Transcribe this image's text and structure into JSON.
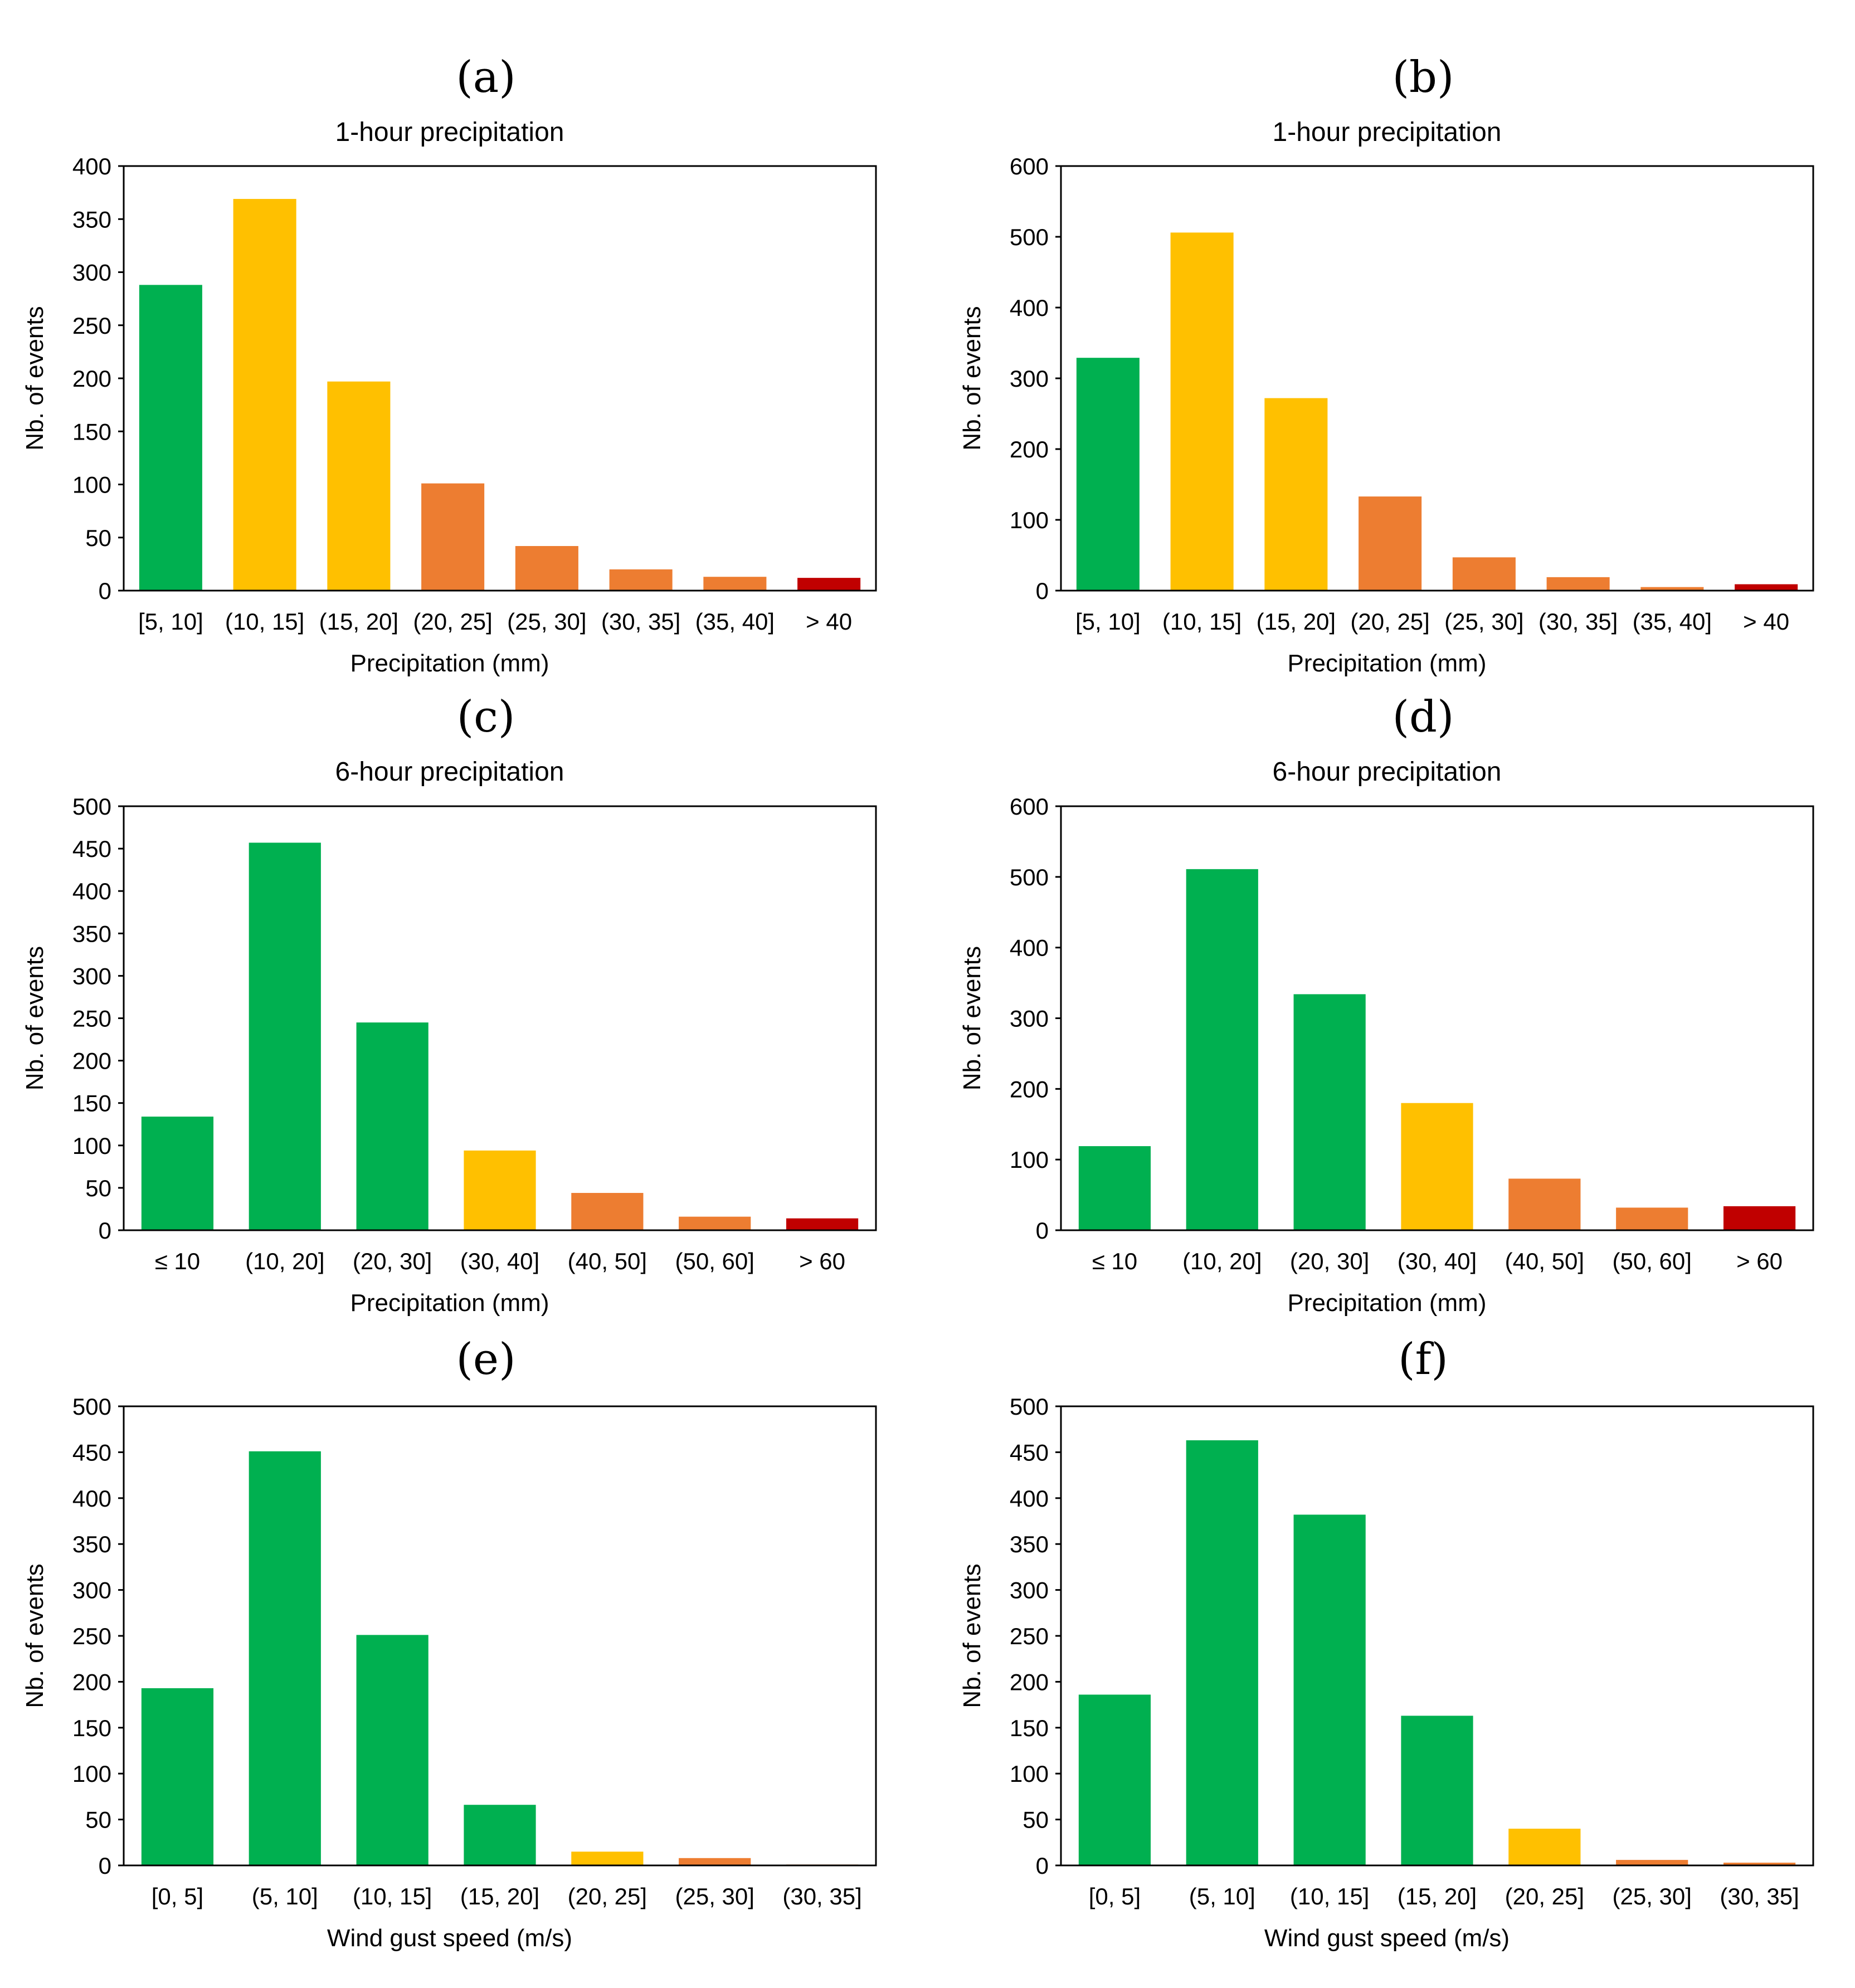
{
  "colors": {
    "green": "#00b050",
    "yellow": "#ffc000",
    "orange": "#ed7d31",
    "red": "#c00000"
  },
  "chart_data": [
    {
      "type": "bar",
      "panel": "(a)",
      "title": "1-hour precipitation",
      "xlabel": "Precipitation (mm)",
      "ylabel": "Nb. of events",
      "ylim": [
        0,
        400
      ],
      "yticks": [
        0,
        50,
        100,
        150,
        200,
        250,
        300,
        350,
        400
      ],
      "categories": [
        "[5, 10]",
        "(10, 15]",
        "(15, 20]",
        "(20, 25]",
        "(25, 30]",
        "(30, 35]",
        "(35, 40]",
        "> 40"
      ],
      "values": [
        288,
        369,
        197,
        101,
        42,
        20,
        13,
        12
      ],
      "bar_colors": [
        "green",
        "yellow",
        "yellow",
        "orange",
        "orange",
        "orange",
        "orange",
        "red"
      ]
    },
    {
      "type": "bar",
      "panel": "(b)",
      "title": "1-hour precipitation",
      "xlabel": "Precipitation (mm)",
      "ylabel": "Nb. of events",
      "ylim": [
        0,
        600
      ],
      "yticks": [
        0,
        100,
        200,
        300,
        400,
        500,
        600
      ],
      "categories": [
        "[5, 10]",
        "(10, 15]",
        "(15, 20]",
        "(20, 25]",
        "(25, 30]",
        "(30, 35]",
        "(35, 40]",
        "> 40"
      ],
      "values": [
        329,
        506,
        272,
        133,
        47,
        19,
        5,
        9
      ],
      "bar_colors": [
        "green",
        "yellow",
        "yellow",
        "orange",
        "orange",
        "orange",
        "orange",
        "red"
      ]
    },
    {
      "type": "bar",
      "panel": "(c)",
      "title": "6-hour precipitation",
      "xlabel": "Precipitation (mm)",
      "ylabel": "Nb. of events",
      "ylim": [
        0,
        500
      ],
      "yticks": [
        0,
        50,
        100,
        150,
        200,
        250,
        300,
        350,
        400,
        450,
        500
      ],
      "categories": [
        "≤ 10",
        "(10, 20]",
        "(20, 30]",
        "(30, 40]",
        "(40, 50]",
        "(50, 60]",
        "> 60"
      ],
      "values": [
        134,
        457,
        245,
        94,
        44,
        16,
        14
      ],
      "bar_colors": [
        "green",
        "green",
        "green",
        "yellow",
        "orange",
        "orange",
        "red"
      ]
    },
    {
      "type": "bar",
      "panel": "(d)",
      "title": "6-hour precipitation",
      "xlabel": "Precipitation (mm)",
      "ylabel": "Nb. of events",
      "ylim": [
        0,
        600
      ],
      "yticks": [
        0,
        100,
        200,
        300,
        400,
        500,
        600
      ],
      "categories": [
        "≤ 10",
        "(10, 20]",
        "(20, 30]",
        "(30, 40]",
        "(40, 50]",
        "(50, 60]",
        "> 60"
      ],
      "values": [
        119,
        511,
        334,
        180,
        73,
        32,
        34
      ],
      "bar_colors": [
        "green",
        "green",
        "green",
        "yellow",
        "orange",
        "orange",
        "red"
      ]
    },
    {
      "type": "bar",
      "panel": "(e)",
      "title": "",
      "xlabel": "Wind gust speed (m/s)",
      "ylabel": "Nb. of events",
      "ylim": [
        0,
        500
      ],
      "yticks": [
        0,
        50,
        100,
        150,
        200,
        250,
        300,
        350,
        400,
        450,
        500
      ],
      "categories": [
        "[0, 5]",
        "(5, 10]",
        "(10, 15]",
        "(15, 20]",
        "(20, 25]",
        "(25, 30]",
        "(30, 35]"
      ],
      "values": [
        193,
        451,
        251,
        66,
        15,
        8,
        1
      ],
      "bar_colors": [
        "green",
        "green",
        "green",
        "green",
        "yellow",
        "orange",
        "orange"
      ]
    },
    {
      "type": "bar",
      "panel": "(f)",
      "title": "",
      "xlabel": "Wind gust speed (m/s)",
      "ylabel": "Nb. of events",
      "ylim": [
        0,
        500
      ],
      "yticks": [
        0,
        50,
        100,
        150,
        200,
        250,
        300,
        350,
        400,
        450,
        500
      ],
      "categories": [
        "[0, 5]",
        "(5, 10]",
        "(10, 15]",
        "(15, 20]",
        "(20, 25]",
        "(25, 30]",
        "(30, 35]"
      ],
      "values": [
        186,
        463,
        382,
        163,
        40,
        6,
        3
      ],
      "bar_colors": [
        "green",
        "green",
        "green",
        "green",
        "yellow",
        "orange",
        "orange"
      ]
    }
  ]
}
